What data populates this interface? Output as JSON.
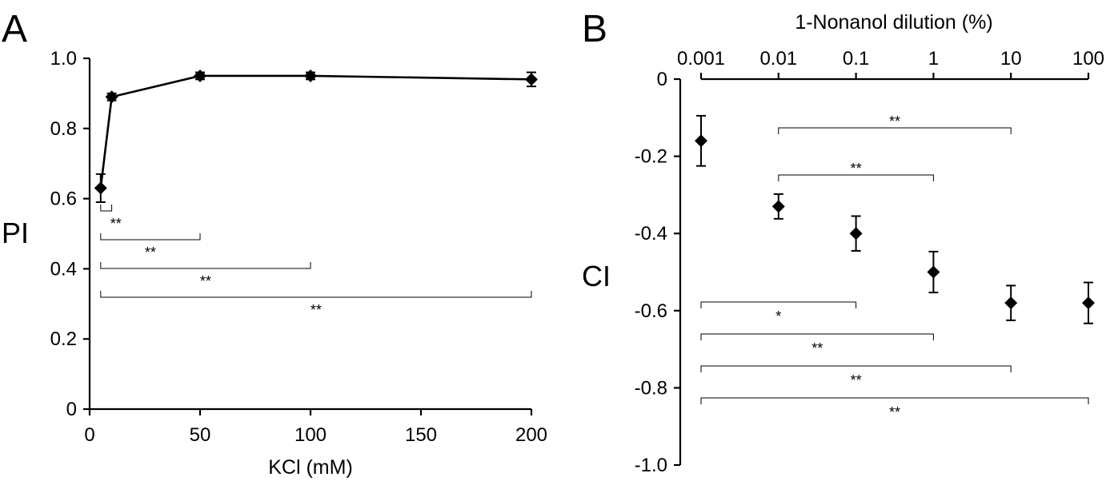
{
  "chart_data": [
    {
      "panel": "A",
      "type": "line",
      "xlabel": "KCl (mM)",
      "ylabel": "PI",
      "xlim": [
        0,
        200
      ],
      "ylim": [
        0,
        1.0
      ],
      "xticks": [
        "0",
        "50",
        "100",
        "150",
        "200"
      ],
      "yticks": [
        "0",
        "0.2",
        "0.4",
        "0.6",
        "0.8",
        "1.0"
      ],
      "series": [
        {
          "x": [
            5,
            10,
            50,
            100,
            200
          ],
          "y": [
            0.63,
            0.89,
            0.95,
            0.95,
            0.94
          ],
          "err": [
            0.04,
            0.01,
            0.01,
            0.01,
            0.02
          ]
        }
      ],
      "significance": [
        {
          "from": 5,
          "to": 10,
          "label": "**"
        },
        {
          "from": 5,
          "to": 50,
          "label": "**"
        },
        {
          "from": 5,
          "to": 100,
          "label": "**"
        },
        {
          "from": 5,
          "to": 200,
          "label": "**"
        }
      ]
    },
    {
      "panel": "B",
      "type": "scatter",
      "xlabel": "1-Nonanol dilution (%)",
      "ylabel": "CI",
      "x_scale": "log",
      "x_axis_position": "top",
      "xlim": [
        0.001,
        100
      ],
      "ylim": [
        -1.0,
        0
      ],
      "xticks": [
        "0.001",
        "0.01",
        "0.1",
        "1",
        "10",
        "100"
      ],
      "yticks": [
        "0",
        "-0.2",
        "-0.4",
        "-0.6",
        "-0.8",
        "-1.0"
      ],
      "series": [
        {
          "x": [
            0.001,
            0.01,
            0.1,
            1,
            10,
            100
          ],
          "y": [
            -0.16,
            -0.33,
            -0.4,
            -0.5,
            -0.58,
            -0.58
          ],
          "err": [
            0.065,
            0.032,
            0.045,
            0.053,
            0.045,
            0.053
          ]
        }
      ],
      "significance": [
        {
          "from": 0.01,
          "to": 10,
          "label": "**"
        },
        {
          "from": 0.01,
          "to": 1,
          "label": "**"
        },
        {
          "from": 0.001,
          "to": 0.1,
          "label": "*"
        },
        {
          "from": 0.001,
          "to": 1,
          "label": "**"
        },
        {
          "from": 0.001,
          "to": 10,
          "label": "**"
        },
        {
          "from": 0.001,
          "to": 100,
          "label": "**"
        }
      ]
    }
  ]
}
